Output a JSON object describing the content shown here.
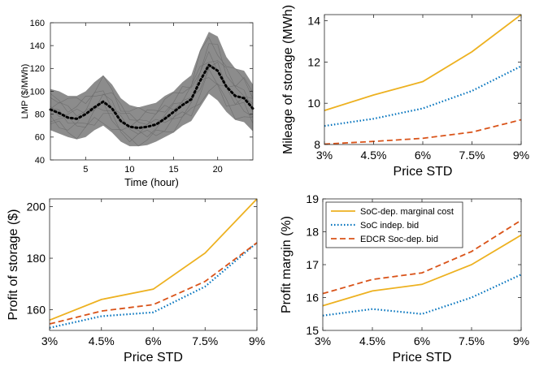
{
  "colors": {
    "cost": "#EDB120",
    "indep": "#0072BD",
    "edcr": "#D95319",
    "band": "#8c8c8c",
    "mean": "#000000"
  },
  "chart_data": [
    {
      "id": "lmp",
      "type": "line",
      "xlabel": "Time (hour)",
      "ylabel": "LMP ($/MWh)",
      "xlim": [
        1,
        24
      ],
      "ylim": [
        40,
        160
      ],
      "xticks": [
        5,
        10,
        15,
        20
      ],
      "yticks": [
        40,
        60,
        80,
        100,
        120,
        140,
        160
      ],
      "x": [
        1,
        2,
        3,
        4,
        5,
        6,
        7,
        8,
        9,
        10,
        11,
        12,
        13,
        14,
        15,
        16,
        17,
        18,
        19,
        20,
        21,
        22,
        23,
        24
      ],
      "series": [
        {
          "style": "dotted-mean",
          "values": [
            84,
            81,
            77,
            76,
            80,
            86,
            91,
            85,
            74,
            69,
            68,
            69,
            71,
            76,
            82,
            88,
            93,
            109,
            123,
            118,
            104,
            96,
            94,
            85
          ]
        },
        {
          "style": "scenario-band",
          "lower": [
            66,
            63,
            60,
            58,
            60,
            66,
            70,
            64,
            56,
            52,
            52,
            53,
            56,
            60,
            64,
            70,
            74,
            86,
            98,
            92,
            82,
            75,
            73,
            65
          ],
          "upper": [
            102,
            100,
            96,
            96,
            100,
            108,
            114,
            106,
            94,
            88,
            86,
            88,
            90,
            96,
            100,
            108,
            114,
            136,
            152,
            148,
            130,
            120,
            118,
            106
          ]
        }
      ]
    },
    {
      "id": "mileage",
      "type": "line",
      "xlabel": "Price STD",
      "ylabel": "Mileage of storage (MWh)",
      "categories": [
        "3%",
        "4.5%",
        "6%",
        "7.5%",
        "9%"
      ],
      "ylim": [
        8,
        14.3
      ],
      "yticks": [
        8,
        10,
        12,
        14
      ],
      "series": [
        {
          "key": "cost",
          "values": [
            9.65,
            10.4,
            11.05,
            12.5,
            14.3
          ]
        },
        {
          "key": "indep",
          "values": [
            8.9,
            9.25,
            9.75,
            10.6,
            11.8
          ]
        },
        {
          "key": "edcr",
          "values": [
            8.02,
            8.15,
            8.3,
            8.6,
            9.2
          ]
        }
      ]
    },
    {
      "id": "profit",
      "type": "line",
      "xlabel": "Price STD",
      "ylabel": "Profit of storage ($)",
      "categories": [
        "3%",
        "4.5%",
        "6%",
        "7.5%",
        "9%"
      ],
      "ylim": [
        152,
        203
      ],
      "yticks": [
        160,
        180,
        200
      ],
      "series": [
        {
          "key": "cost",
          "values": [
            156,
            164,
            168,
            182,
            203
          ]
        },
        {
          "key": "indep",
          "values": [
            153,
            157.5,
            159,
            169,
            186
          ]
        },
        {
          "key": "edcr",
          "values": [
            154.5,
            159.5,
            162,
            171,
            186
          ]
        }
      ]
    },
    {
      "id": "margin",
      "type": "line",
      "xlabel": "Price STD",
      "ylabel": "Profit margin (%)",
      "categories": [
        "3%",
        "4.5%",
        "6%",
        "7.5%",
        "9%"
      ],
      "ylim": [
        15,
        19
      ],
      "yticks": [
        15,
        16,
        17,
        18,
        19
      ],
      "legend": {
        "placement": "top-left",
        "entries": [
          {
            "key": "cost",
            "label": "SoC-dep. marginal cost"
          },
          {
            "key": "indep",
            "label": "SoC indep. bid"
          },
          {
            "key": "edcr",
            "label": "EDCR Soc-dep. bid"
          }
        ]
      },
      "series": [
        {
          "key": "cost",
          "values": [
            15.75,
            16.2,
            16.4,
            17.0,
            17.9
          ]
        },
        {
          "key": "indep",
          "values": [
            15.45,
            15.65,
            15.5,
            16.0,
            16.7
          ]
        },
        {
          "key": "edcr",
          "values": [
            16.12,
            16.55,
            16.75,
            17.4,
            18.35
          ]
        }
      ]
    }
  ]
}
